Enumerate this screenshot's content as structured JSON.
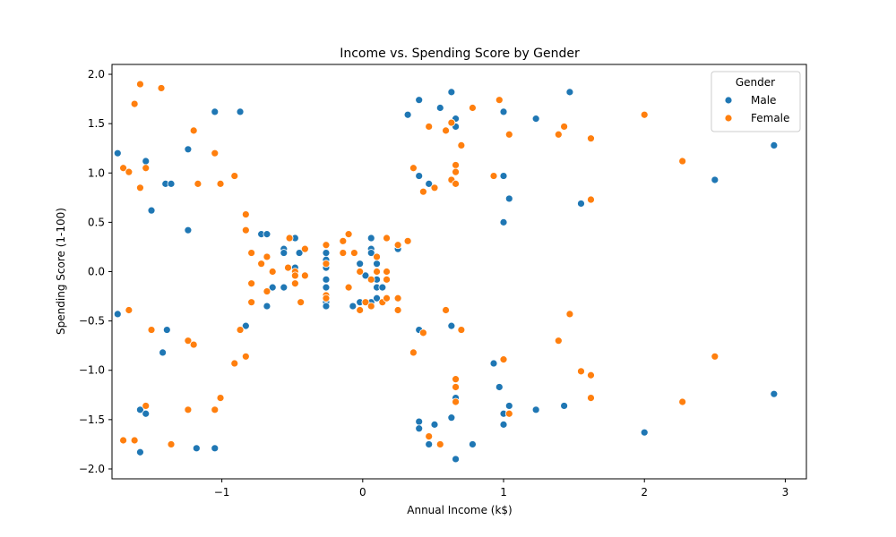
{
  "chart_data": {
    "type": "scatter",
    "title": "Income vs. Spending Score by Gender",
    "xlabel": "Annual Income (k$)",
    "ylabel": "Spending Score (1-100)",
    "xlim": [
      -1.78,
      3.15
    ],
    "ylim": [
      -2.1,
      2.1
    ],
    "xticks": [
      -1,
      0,
      1,
      2,
      3
    ],
    "xtick_labels": [
      "−1",
      "0",
      "1",
      "2",
      "3"
    ],
    "yticks": [
      -2.0,
      -1.5,
      -1.0,
      -0.5,
      0.0,
      0.5,
      1.0,
      1.5,
      2.0
    ],
    "ytick_labels": [
      "−2.0",
      "−1.5",
      "−1.0",
      "−0.5",
      "0.0",
      "0.5",
      "1.0",
      "1.5",
      "2.0"
    ],
    "grid": false,
    "legend": {
      "title": "Gender",
      "location": "top-right"
    },
    "series": [
      {
        "name": "Male",
        "color": "#1f77b4",
        "points": [
          [
            -1.74,
            1.2
          ],
          [
            -1.74,
            -0.43
          ],
          [
            -1.54,
            1.12
          ],
          [
            -1.5,
            0.62
          ],
          [
            -1.4,
            0.89
          ],
          [
            -1.36,
            0.89
          ],
          [
            -1.24,
            1.24
          ],
          [
            -1.24,
            0.42
          ],
          [
            -1.42,
            -0.82
          ],
          [
            -1.39,
            -0.59
          ],
          [
            -1.58,
            -1.4
          ],
          [
            -1.54,
            -1.44
          ],
          [
            -1.58,
            -1.83
          ],
          [
            -1.18,
            -1.79
          ],
          [
            -1.05,
            -1.79
          ],
          [
            -1.05,
            1.62
          ],
          [
            -0.87,
            1.62
          ],
          [
            -0.83,
            -0.55
          ],
          [
            -0.72,
            0.38
          ],
          [
            -0.68,
            0.38
          ],
          [
            -0.56,
            0.23
          ],
          [
            -0.56,
            0.19
          ],
          [
            -0.48,
            0.34
          ],
          [
            -0.48,
            0.04
          ],
          [
            -0.45,
            0.19
          ],
          [
            -0.64,
            -0.16
          ],
          [
            -0.56,
            -0.16
          ],
          [
            -0.68,
            -0.35
          ],
          [
            -0.26,
            0.19
          ],
          [
            -0.26,
            0.12
          ],
          [
            -0.26,
            0.04
          ],
          [
            -0.26,
            -0.08
          ],
          [
            -0.26,
            -0.16
          ],
          [
            -0.26,
            -0.31
          ],
          [
            -0.26,
            -0.35
          ],
          [
            -0.07,
            -0.35
          ],
          [
            -0.02,
            -0.31
          ],
          [
            -0.02,
            0.08
          ],
          [
            0.02,
            -0.04
          ],
          [
            0.02,
            -0.31
          ],
          [
            0.06,
            0.34
          ],
          [
            0.06,
            0.23
          ],
          [
            0.06,
            0.19
          ],
          [
            0.06,
            -0.31
          ],
          [
            0.1,
            0.08
          ],
          [
            0.1,
            -0.08
          ],
          [
            0.1,
            -0.16
          ],
          [
            0.1,
            -0.27
          ],
          [
            0.14,
            -0.16
          ],
          [
            0.25,
            0.23
          ],
          [
            0.32,
            1.59
          ],
          [
            0.4,
            1.74
          ],
          [
            0.4,
            0.97
          ],
          [
            0.47,
            0.89
          ],
          [
            0.55,
            1.66
          ],
          [
            0.63,
            1.82
          ],
          [
            0.66,
            1.55
          ],
          [
            0.66,
            1.47
          ],
          [
            1.0,
            1.62
          ],
          [
            1.0,
            0.97
          ],
          [
            1.04,
            0.74
          ],
          [
            1.0,
            0.5
          ],
          [
            1.23,
            1.55
          ],
          [
            1.47,
            1.82
          ],
          [
            1.55,
            0.69
          ],
          [
            2.5,
            0.93
          ],
          [
            2.92,
            1.28
          ],
          [
            0.4,
            -0.59
          ],
          [
            0.63,
            -0.55
          ],
          [
            0.93,
            -0.93
          ],
          [
            0.97,
            -1.17
          ],
          [
            1.0,
            -1.44
          ],
          [
            1.04,
            -1.36
          ],
          [
            1.0,
            -1.55
          ],
          [
            1.23,
            -1.4
          ],
          [
            1.43,
            -1.36
          ],
          [
            2.0,
            -1.63
          ],
          [
            2.92,
            -1.24
          ],
          [
            0.4,
            -1.52
          ],
          [
            0.4,
            -1.59
          ],
          [
            0.47,
            -1.75
          ],
          [
            0.51,
            -1.55
          ],
          [
            0.63,
            -1.48
          ],
          [
            0.66,
            -1.28
          ],
          [
            0.66,
            -1.9
          ],
          [
            0.78,
            -1.75
          ]
        ]
      },
      {
        "name": "Female",
        "color": "#ff7f0e",
        "points": [
          [
            -1.58,
            1.9
          ],
          [
            -1.43,
            1.86
          ],
          [
            -1.62,
            1.7
          ],
          [
            -1.2,
            1.43
          ],
          [
            -1.05,
            1.2
          ],
          [
            -1.7,
            1.05
          ],
          [
            -1.66,
            1.01
          ],
          [
            -1.54,
            1.05
          ],
          [
            -1.58,
            0.85
          ],
          [
            -1.17,
            0.89
          ],
          [
            -1.01,
            0.89
          ],
          [
            -0.91,
            0.97
          ],
          [
            -1.66,
            -0.39
          ],
          [
            -1.5,
            -0.59
          ],
          [
            -1.24,
            -0.7
          ],
          [
            -1.2,
            -0.74
          ],
          [
            -0.87,
            -0.59
          ],
          [
            -0.83,
            -0.86
          ],
          [
            -0.91,
            -0.93
          ],
          [
            -1.54,
            -1.36
          ],
          [
            -1.24,
            -1.4
          ],
          [
            -1.05,
            -1.4
          ],
          [
            -1.01,
            -1.28
          ],
          [
            -1.7,
            -1.71
          ],
          [
            -1.62,
            -1.71
          ],
          [
            -1.36,
            -1.75
          ],
          [
            -0.83,
            0.58
          ],
          [
            -0.83,
            0.42
          ],
          [
            -0.79,
            0.19
          ],
          [
            -0.79,
            -0.12
          ],
          [
            -0.79,
            -0.31
          ],
          [
            -0.72,
            0.08
          ],
          [
            -0.68,
            0.15
          ],
          [
            -0.68,
            -0.2
          ],
          [
            -0.64,
            0.0
          ],
          [
            -0.53,
            0.04
          ],
          [
            -0.52,
            0.34
          ],
          [
            -0.48,
            0.0
          ],
          [
            -0.48,
            -0.04
          ],
          [
            -0.48,
            -0.12
          ],
          [
            -0.44,
            -0.31
          ],
          [
            -0.41,
            0.23
          ],
          [
            -0.41,
            -0.04
          ],
          [
            -0.26,
            0.27
          ],
          [
            -0.26,
            0.08
          ],
          [
            -0.26,
            -0.24
          ],
          [
            -0.26,
            -0.27
          ],
          [
            -0.14,
            0.31
          ],
          [
            -0.14,
            0.19
          ],
          [
            -0.1,
            0.38
          ],
          [
            -0.1,
            -0.16
          ],
          [
            -0.06,
            0.19
          ],
          [
            -0.02,
            0.0
          ],
          [
            -0.02,
            -0.39
          ],
          [
            0.02,
            -0.31
          ],
          [
            0.06,
            -0.08
          ],
          [
            0.06,
            -0.35
          ],
          [
            0.1,
            0.15
          ],
          [
            0.1,
            0.0
          ],
          [
            0.14,
            -0.31
          ],
          [
            0.17,
            0.34
          ],
          [
            0.17,
            0.0
          ],
          [
            0.17,
            -0.08
          ],
          [
            0.17,
            -0.27
          ],
          [
            0.25,
            0.27
          ],
          [
            0.25,
            -0.27
          ],
          [
            0.25,
            -0.39
          ],
          [
            0.32,
            0.31
          ],
          [
            0.36,
            1.05
          ],
          [
            0.43,
            0.81
          ],
          [
            0.47,
            1.47
          ],
          [
            0.51,
            0.85
          ],
          [
            0.59,
            1.43
          ],
          [
            0.63,
            1.51
          ],
          [
            0.63,
            0.93
          ],
          [
            0.66,
            1.08
          ],
          [
            0.66,
            1.01
          ],
          [
            0.66,
            0.89
          ],
          [
            0.7,
            1.28
          ],
          [
            0.78,
            1.66
          ],
          [
            0.93,
            0.97
          ],
          [
            0.97,
            1.74
          ],
          [
            1.04,
            1.39
          ],
          [
            1.39,
            1.39
          ],
          [
            1.43,
            1.47
          ],
          [
            1.62,
            1.35
          ],
          [
            1.62,
            0.73
          ],
          [
            2.0,
            1.59
          ],
          [
            2.27,
            1.12
          ],
          [
            0.36,
            -0.82
          ],
          [
            0.43,
            -0.62
          ],
          [
            0.59,
            -0.39
          ],
          [
            0.7,
            -0.59
          ],
          [
            1.0,
            -0.89
          ],
          [
            1.39,
            -0.7
          ],
          [
            1.47,
            -0.43
          ],
          [
            1.55,
            -1.01
          ],
          [
            1.62,
            -1.05
          ],
          [
            2.5,
            -0.86
          ],
          [
            0.66,
            -1.09
          ],
          [
            0.66,
            -1.17
          ],
          [
            0.66,
            -1.32
          ],
          [
            0.47,
            -1.67
          ],
          [
            0.55,
            -1.75
          ],
          [
            1.04,
            -1.44
          ],
          [
            1.62,
            -1.28
          ],
          [
            2.27,
            -1.32
          ]
        ]
      }
    ]
  }
}
